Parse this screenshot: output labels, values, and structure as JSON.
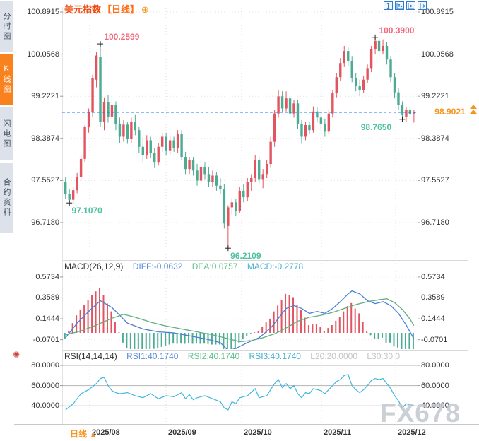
{
  "header": {
    "title": "美元指数",
    "period_tag": "【日线】",
    "expand_symbol": "⊕"
  },
  "sidebar": {
    "tabs": [
      {
        "label": "分时图",
        "active": false
      },
      {
        "label": "K线图",
        "active": true
      },
      {
        "label": "闪电图",
        "active": false
      },
      {
        "label": "合约资料",
        "active": false
      }
    ]
  },
  "toolbar": {
    "icons": [
      "pan-tool",
      "axis-scale",
      "auto-scroll",
      "go-to-latest"
    ]
  },
  "colors": {
    "up_candle": "#e25560",
    "down_candle": "#4cab93",
    "accent_orange": "#f7941d",
    "active_tab": "#f8821e",
    "dashed_price_line": "#1e7ce8",
    "diff_line": "#4a7fd4",
    "dea_line": "#5fae84",
    "rsi_line": "#3fb6dc",
    "anno_high": "#f4687c",
    "anno_low": "#4fc0a0"
  },
  "current_price": "98.9021",
  "macd_header": {
    "name": "MACD(26,12,9)",
    "diff": "DIFF:-0.0632",
    "dea": "DEA:0.0757",
    "macd": "MACD:-0.2778"
  },
  "rsi_header": {
    "name": "RSI(14,14,14)",
    "rsi1": "RSI1:40.1740",
    "rsi2": "RSI2:40.1740",
    "rsi3": "RSI3:40.1740",
    "l20": "L20:20.0000",
    "l30": "L30:30.0"
  },
  "bottom": {
    "tab_label": "日线",
    "tab_arrow": "▲"
  },
  "watermark": "FX678",
  "chart_data": [
    {
      "type": "candlestick",
      "title": "美元指数 日线",
      "x_axis_labels": [
        "2025/08",
        "2025/09",
        "2025/10",
        "2025/11",
        "2025/12"
      ],
      "y_ticks": [
        100.8915,
        100.0568,
        99.2221,
        98.3874,
        97.5527,
        96.718
      ],
      "last_price": 98.9021,
      "markers": [
        {
          "index": 1,
          "position": "low",
          "value": 97.107,
          "label": "97.1070"
        },
        {
          "index": 9,
          "position": "high",
          "value": 100.2599,
          "label": "100.2599"
        },
        {
          "index": 42,
          "position": "low",
          "value": 96.2109,
          "label": "96.2109"
        },
        {
          "index": 80,
          "position": "high",
          "value": 100.39,
          "label": "100.3900"
        },
        {
          "index": 87,
          "position": "low",
          "value": 98.765,
          "label": "98.7650"
        }
      ],
      "ohlc": [
        [
          97.52,
          97.62,
          97.18,
          97.28
        ],
        [
          97.28,
          97.38,
          97.107,
          97.17
        ],
        [
          97.17,
          97.42,
          97.08,
          97.36
        ],
        [
          97.36,
          97.7,
          97.3,
          97.62
        ],
        [
          97.62,
          98.05,
          97.55,
          97.98
        ],
        [
          97.98,
          98.65,
          97.92,
          98.61
        ],
        [
          98.61,
          98.98,
          98.5,
          98.92
        ],
        [
          98.9,
          99.65,
          98.82,
          99.58
        ],
        [
          99.55,
          100.1,
          99.4,
          100.03
        ],
        [
          100.0,
          100.2599,
          98.62,
          98.72
        ],
        [
          98.72,
          99.2,
          98.55,
          99.1
        ],
        [
          99.1,
          99.25,
          98.7,
          98.82
        ],
        [
          98.82,
          99.15,
          98.72,
          99.05
        ],
        [
          99.05,
          99.12,
          98.55,
          98.68
        ],
        [
          98.68,
          98.8,
          98.3,
          98.42
        ],
        [
          98.42,
          98.75,
          98.32,
          98.66
        ],
        [
          98.66,
          98.72,
          98.28,
          98.38
        ],
        [
          98.38,
          98.8,
          98.3,
          98.72
        ],
        [
          98.72,
          98.85,
          98.45,
          98.55
        ],
        [
          98.55,
          98.62,
          98.1,
          98.22
        ],
        [
          98.22,
          98.4,
          97.92,
          98.05
        ],
        [
          98.05,
          98.45,
          97.98,
          98.35
        ],
        [
          98.35,
          98.42,
          98.0,
          98.1
        ],
        [
          98.1,
          98.2,
          97.8,
          97.92
        ],
        [
          97.92,
          98.3,
          97.85,
          98.22
        ],
        [
          98.22,
          98.5,
          98.12,
          98.42
        ],
        [
          98.42,
          98.5,
          98.05,
          98.15
        ],
        [
          98.15,
          98.45,
          98.05,
          98.35
        ],
        [
          98.35,
          98.42,
          98.12,
          98.2
        ],
        [
          98.2,
          98.55,
          98.1,
          98.48
        ],
        [
          98.48,
          98.55,
          97.95,
          98.02
        ],
        [
          98.02,
          98.12,
          97.68,
          97.78
        ],
        [
          97.78,
          98.02,
          97.68,
          97.95
        ],
        [
          97.95,
          98.02,
          97.65,
          97.75
        ],
        [
          97.75,
          97.88,
          97.45,
          97.55
        ],
        [
          97.55,
          97.9,
          97.48,
          97.82
        ],
        [
          97.82,
          97.92,
          97.58,
          97.68
        ],
        [
          97.68,
          97.82,
          97.42,
          97.52
        ],
        [
          97.52,
          97.75,
          97.42,
          97.65
        ],
        [
          97.65,
          97.72,
          97.35,
          97.45
        ],
        [
          97.45,
          97.6,
          97.28,
          97.38
        ],
        [
          97.38,
          97.48,
          96.6,
          96.7
        ],
        [
          96.65,
          97.06,
          96.2109,
          97.02
        ],
        [
          97.02,
          97.2,
          96.88,
          97.12
        ],
        [
          97.12,
          97.18,
          96.85,
          96.95
        ],
        [
          96.95,
          97.42,
          96.9,
          97.35
        ],
        [
          97.35,
          97.48,
          97.12,
          97.22
        ],
        [
          97.22,
          97.6,
          97.15,
          97.52
        ],
        [
          97.52,
          97.68,
          97.35,
          97.6
        ],
        [
          97.6,
          98.05,
          97.52,
          97.95
        ],
        [
          97.95,
          98.02,
          97.5,
          97.58
        ],
        [
          97.58,
          97.78,
          97.4,
          97.68
        ],
        [
          97.68,
          97.95,
          97.6,
          97.88
        ],
        [
          97.88,
          98.42,
          97.8,
          98.32
        ],
        [
          98.32,
          98.95,
          98.22,
          98.88
        ],
        [
          98.88,
          99.35,
          98.8,
          99.22
        ],
        [
          99.22,
          99.32,
          98.9,
          98.98
        ],
        [
          98.98,
          99.32,
          98.92,
          99.18
        ],
        [
          99.18,
          99.25,
          98.82,
          98.88
        ],
        [
          98.88,
          99.15,
          98.8,
          99.08
        ],
        [
          99.08,
          99.15,
          98.58,
          98.68
        ],
        [
          98.68,
          98.75,
          98.28,
          98.42
        ],
        [
          98.42,
          98.72,
          98.35,
          98.65
        ],
        [
          98.65,
          98.72,
          98.48,
          98.55
        ],
        [
          98.55,
          99.02,
          98.5,
          98.92
        ],
        [
          98.92,
          99.0,
          98.7,
          98.8
        ],
        [
          98.8,
          98.92,
          98.55,
          98.68
        ],
        [
          98.68,
          98.78,
          98.42,
          98.52
        ],
        [
          98.52,
          98.95,
          98.48,
          98.88
        ],
        [
          98.88,
          99.35,
          98.8,
          99.28
        ],
        [
          99.28,
          99.68,
          99.2,
          99.6
        ],
        [
          99.6,
          99.98,
          99.52,
          99.88
        ],
        [
          99.88,
          100.22,
          99.8,
          100.12
        ],
        [
          100.12,
          100.2,
          99.82,
          99.92
        ],
        [
          99.92,
          100.02,
          99.5,
          99.58
        ],
        [
          99.58,
          99.68,
          99.32,
          99.42
        ],
        [
          99.42,
          99.55,
          99.22,
          99.35
        ],
        [
          99.35,
          99.62,
          99.28,
          99.55
        ],
        [
          99.55,
          99.85,
          99.48,
          99.78
        ],
        [
          99.78,
          100.22,
          99.7,
          100.15
        ],
        [
          100.15,
          100.39,
          100.05,
          100.32
        ],
        [
          100.32,
          100.38,
          100.02,
          100.12
        ],
        [
          100.12,
          100.35,
          100.05,
          100.22
        ],
        [
          100.22,
          100.3,
          99.85,
          99.95
        ],
        [
          99.95,
          100.02,
          99.5,
          99.6
        ],
        [
          99.6,
          99.68,
          99.18,
          99.3
        ],
        [
          99.3,
          99.38,
          98.95,
          99.05
        ],
        [
          99.05,
          99.12,
          98.765,
          98.85
        ],
        [
          98.82,
          99.02,
          98.72,
          98.96
        ],
        [
          98.96,
          99.02,
          98.78,
          98.86
        ],
        [
          98.88,
          98.95,
          98.7,
          98.9021
        ]
      ]
    },
    {
      "type": "bar",
      "name": "MACD(26,12,9)",
      "y_ticks": [
        0.5734,
        0.3589,
        0.1444,
        -0.0701
      ],
      "histogram_rule": "2*(diff-dea)",
      "last": {
        "diff": -0.0632,
        "dea": 0.0757,
        "macd": -0.2778
      },
      "diff": [
        -0.05,
        0,
        0.05,
        0.1,
        0.14,
        0.18,
        0.22,
        0.257,
        0.293,
        0.33,
        0.307,
        0.283,
        0.26,
        0.22,
        0.18,
        0.14,
        0.1,
        0.085,
        0.07,
        0.055,
        0.04,
        0.033,
        0.025,
        0.018,
        0.01,
        0.008,
        0.005,
        0.003,
        0,
        -0.008,
        -0.015,
        -0.023,
        -0.03,
        -0.038,
        -0.045,
        -0.053,
        -0.06,
        -0.07,
        -0.08,
        -0.09,
        -0.1,
        -0.14,
        -0.18,
        -0.17,
        -0.16,
        -0.14,
        -0.12,
        -0.1,
        -0.083,
        -0.067,
        -0.05,
        -0.017,
        0.017,
        0.05,
        0.1,
        0.15,
        0.2,
        0.25,
        0.265,
        0.28,
        0.265,
        0.25,
        0.225,
        0.2,
        0.21,
        0.22,
        0.21,
        0.2,
        0.225,
        0.25,
        0.285,
        0.32,
        0.36,
        0.4,
        0.43,
        0.415,
        0.4,
        0.365,
        0.33,
        0.315,
        0.3,
        0.31,
        0.32,
        0.3,
        0.28,
        0.24,
        0.2,
        0.14,
        0.08,
        0.01,
        -0.0632
      ],
      "dea": [
        -0.02,
        -0.01,
        0,
        0.01,
        0.02,
        0.035,
        0.05,
        0.065,
        0.08,
        0.098,
        0.115,
        0.133,
        0.15,
        0.163,
        0.177,
        0.19,
        0.18,
        0.17,
        0.16,
        0.148,
        0.135,
        0.123,
        0.11,
        0.1,
        0.09,
        0.08,
        0.07,
        0.063,
        0.055,
        0.048,
        0.04,
        0.033,
        0.025,
        0.018,
        0.01,
        0.003,
        -0.005,
        -0.013,
        -0.02,
        -0.03,
        -0.04,
        -0.05,
        -0.06,
        -0.07,
        -0.08,
        -0.09,
        -0.087,
        -0.083,
        -0.08,
        -0.07,
        -0.06,
        -0.05,
        -0.037,
        -0.023,
        -0.01,
        0.01,
        0.03,
        0.05,
        0.073,
        0.097,
        0.12,
        0.133,
        0.147,
        0.16,
        0.167,
        0.173,
        0.18,
        0.19,
        0.2,
        0.21,
        0.223,
        0.237,
        0.25,
        0.263,
        0.277,
        0.29,
        0.3,
        0.31,
        0.32,
        0.327,
        0.333,
        0.34,
        0.345,
        0.35,
        0.33,
        0.31,
        0.275,
        0.24,
        0.19,
        0.14,
        0.0757
      ]
    },
    {
      "type": "line",
      "name": "RSI(14,14,14)",
      "y_ticks": [
        80,
        60,
        40
      ],
      "last": {
        "rsi1": 40.174,
        "rsi2": 40.174,
        "rsi3": 40.174,
        "l20": 20.0,
        "l30": 30.0
      },
      "rsi": [
        36,
        39,
        42,
        47,
        52,
        54,
        56,
        59,
        62,
        67,
        68,
        60,
        55,
        53,
        52,
        52.5,
        53,
        51.5,
        50,
        49,
        48,
        50,
        52,
        49.5,
        47,
        48.5,
        50,
        49.5,
        49,
        51,
        53,
        47,
        51,
        46,
        48,
        49,
        50,
        48.5,
        47,
        45.5,
        44,
        38,
        36,
        44,
        42,
        48,
        49,
        50,
        53.5,
        57,
        48,
        49,
        50,
        56,
        62,
        66,
        58,
        62,
        57,
        60,
        52,
        48,
        53,
        52,
        57,
        56,
        55,
        52,
        56,
        60,
        64,
        66,
        70,
        71,
        60,
        56,
        53,
        56,
        60,
        65,
        67,
        66,
        67,
        62,
        57,
        50,
        45,
        38,
        42,
        41,
        40.17
      ]
    }
  ]
}
